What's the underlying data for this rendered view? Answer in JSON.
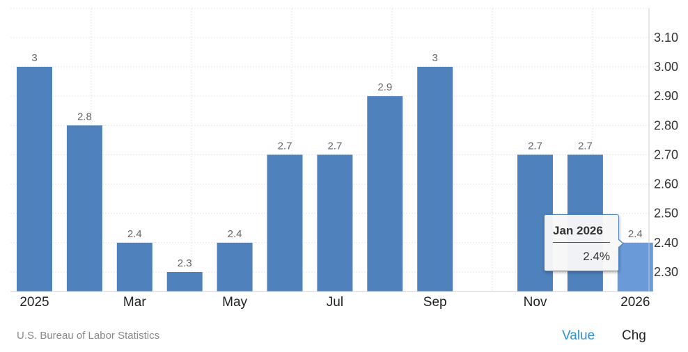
{
  "chart_data": {
    "type": "bar",
    "categories": [
      "Jan 2025",
      "Feb 2025",
      "Mar 2025",
      "Apr 2025",
      "May 2025",
      "Jun 2025",
      "Jul 2025",
      "Aug 2025",
      "Sep 2025",
      "Oct 2025",
      "Nov 2025",
      "Dec 2025",
      "Jan 2026"
    ],
    "values": [
      3,
      2.8,
      2.4,
      2.3,
      2.4,
      2.7,
      2.7,
      2.9,
      3,
      null,
      2.7,
      2.7,
      2.4
    ],
    "data_labels": [
      "3",
      "2.8",
      "2.4",
      "2.3",
      "2.4",
      "2.7",
      "2.7",
      "2.9",
      "3",
      "",
      "2.7",
      "2.7",
      "2.4"
    ],
    "x_tick_labels": [
      {
        "index": 0,
        "label": "2025"
      },
      {
        "index": 2,
        "label": "Mar"
      },
      {
        "index": 4,
        "label": "May"
      },
      {
        "index": 6,
        "label": "Jul"
      },
      {
        "index": 8,
        "label": "Sep"
      },
      {
        "index": 10,
        "label": "Nov"
      },
      {
        "index": 12,
        "label": "2026"
      }
    ],
    "y_ticks": [
      "3.10",
      "3.00",
      "2.90",
      "2.80",
      "2.70",
      "2.60",
      "2.50",
      "2.40",
      "2.30"
    ],
    "ylim": [
      2.24,
      3.17
    ],
    "y_axis_position": "right",
    "grid": true,
    "highlighted_index": 12,
    "bar_color": "#4f81bd",
    "highlight_color": "#6a9bd8"
  },
  "tooltip": {
    "title": "Jan 2026",
    "value": "2.4%"
  },
  "footer": {
    "source": "U.S. Bureau of Labor Statistics",
    "tab_value": "Value",
    "tab_chg": "Chg",
    "tab_value_color": "#2e8fd6"
  }
}
